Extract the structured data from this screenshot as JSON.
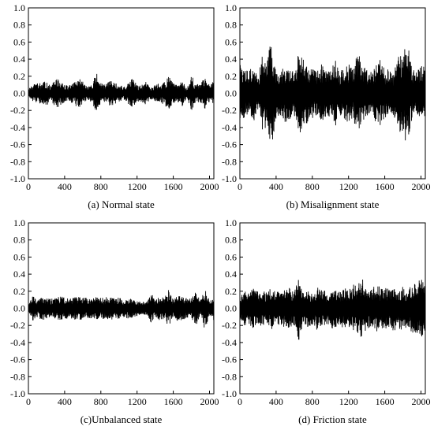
{
  "chart_data": [
    {
      "type": "line",
      "caption": "(a) Normal state",
      "xlim": [
        0,
        2048
      ],
      "ylim": [
        -1.0,
        1.0
      ],
      "x_ticks": [
        0,
        400,
        800,
        1200,
        1600,
        2000
      ],
      "y_ticks": [
        "1.0",
        "0.8",
        "0.6",
        "0.4",
        "0.2",
        "0.0",
        "-0.2",
        "-0.4",
        "-0.6",
        "-0.8",
        "-1.0"
      ],
      "series": [
        {
          "x": [
            0,
            50,
            100,
            150,
            200,
            250,
            300,
            350,
            400,
            450,
            500,
            550,
            600,
            650,
            700,
            750,
            800,
            850,
            900,
            950,
            1000,
            1050,
            1100,
            1150,
            1200,
            1250,
            1300,
            1350,
            1400,
            1450,
            1500,
            1550,
            1600,
            1650,
            1700,
            1750,
            1800,
            1850,
            1900,
            1950,
            2000,
            2048
          ],
          "values": [
            0.05,
            -0.1,
            0.12,
            -0.12,
            0.15,
            -0.08,
            0.18,
            -0.15,
            0.1,
            -0.1,
            0.12,
            -0.18,
            0.14,
            -0.08,
            0.1,
            -0.25,
            0.12,
            -0.1,
            0.15,
            -0.14,
            0.1,
            -0.08,
            0.12,
            -0.18,
            0.1,
            -0.1,
            0.14,
            -0.08,
            0.1,
            -0.12,
            0.13,
            -0.2,
            0.12,
            -0.1,
            0.15,
            -0.05,
            0.22,
            -0.1,
            0.12,
            -0.18,
            0.1,
            -0.15
          ]
        }
      ]
    },
    {
      "type": "line",
      "caption": "(b) Misalignment state",
      "xlim": [
        0,
        2048
      ],
      "ylim": [
        -1.0,
        1.0
      ],
      "x_ticks": [
        0,
        400,
        800,
        1200,
        1600,
        2000
      ],
      "y_ticks": [
        "1.0",
        "0.8",
        "0.6",
        "0.4",
        "0.2",
        "0.0",
        "-0.2",
        "-0.4",
        "-0.6",
        "-0.8",
        "-1.0"
      ],
      "series": [
        {
          "x": [
            0,
            50,
            100,
            150,
            200,
            250,
            300,
            350,
            400,
            450,
            500,
            550,
            600,
            650,
            700,
            750,
            800,
            850,
            900,
            950,
            1000,
            1050,
            1100,
            1150,
            1200,
            1250,
            1300,
            1350,
            1400,
            1450,
            1500,
            1550,
            1600,
            1650,
            1700,
            1750,
            1800,
            1850,
            1900,
            1950,
            2000,
            2048
          ],
          "values": [
            0.35,
            -0.3,
            0.25,
            -0.35,
            0.2,
            -0.45,
            0.42,
            -0.62,
            0.3,
            -0.28,
            0.35,
            -0.3,
            0.25,
            -0.52,
            0.4,
            -0.35,
            0.3,
            -0.25,
            0.35,
            -0.3,
            0.28,
            -0.4,
            0.25,
            -0.3,
            0.35,
            -0.28,
            0.5,
            -0.35,
            0.3,
            -0.25,
            0.35,
            -0.4,
            0.28,
            -0.3,
            0.25,
            -0.45,
            0.45,
            -0.64,
            0.3,
            -0.28,
            0.35,
            -0.3
          ]
        }
      ]
    },
    {
      "type": "line",
      "caption": "(c)Unbalanced state",
      "xlim": [
        0,
        2048
      ],
      "ylim": [
        -1.0,
        1.0
      ],
      "x_ticks": [
        0,
        400,
        800,
        1200,
        1600,
        2000
      ],
      "y_ticks": [
        "1.0",
        "0.8",
        "0.6",
        "0.4",
        "0.2",
        "0.0",
        "-0.2",
        "-0.4",
        "-0.6",
        "-0.8",
        "-1.0"
      ],
      "series": [
        {
          "x": [
            0,
            50,
            100,
            150,
            200,
            250,
            300,
            350,
            400,
            450,
            500,
            550,
            600,
            650,
            700,
            750,
            800,
            850,
            900,
            950,
            1000,
            1050,
            1100,
            1150,
            1200,
            1250,
            1300,
            1350,
            1400,
            1450,
            1500,
            1550,
            1600,
            1650,
            1700,
            1750,
            1800,
            1850,
            1900,
            1950,
            2000,
            2048
          ],
          "values": [
            0.05,
            -0.15,
            0.1,
            -0.15,
            0.12,
            -0.12,
            0.12,
            -0.14,
            0.13,
            -0.12,
            0.14,
            -0.13,
            0.15,
            -0.12,
            0.14,
            -0.14,
            0.12,
            -0.13,
            0.14,
            -0.12,
            0.13,
            -0.1,
            0.12,
            -0.11,
            0.1,
            -0.08,
            0.08,
            -0.2,
            0.1,
            -0.15,
            0.12,
            -0.22,
            0.1,
            -0.15,
            0.14,
            -0.12,
            0.12,
            -0.2,
            0.1,
            -0.25,
            0.08,
            -0.15
          ]
        }
      ]
    },
    {
      "type": "line",
      "caption": "(d) Friction state",
      "xlim": [
        0,
        2048
      ],
      "ylim": [
        -1.0,
        1.0
      ],
      "x_ticks": [
        0,
        400,
        800,
        1200,
        1600,
        2000
      ],
      "y_ticks": [
        "1.0",
        "0.8",
        "0.6",
        "0.4",
        "0.2",
        "0.0",
        "-0.2",
        "-0.4",
        "-0.6",
        "-0.8",
        "-1.0"
      ],
      "series": [
        {
          "x": [
            0,
            50,
            100,
            150,
            200,
            250,
            300,
            350,
            400,
            450,
            500,
            550,
            600,
            650,
            700,
            750,
            800,
            850,
            900,
            950,
            1000,
            1050,
            1100,
            1150,
            1200,
            1250,
            1300,
            1350,
            1400,
            1450,
            1500,
            1550,
            1600,
            1650,
            1700,
            1750,
            1800,
            1850,
            1900,
            1950,
            2000,
            2048
          ],
          "values": [
            0.15,
            -0.2,
            0.18,
            -0.25,
            0.2,
            -0.22,
            0.18,
            -0.25,
            0.2,
            -0.22,
            0.22,
            -0.25,
            0.2,
            -0.38,
            0.18,
            -0.22,
            0.2,
            -0.25,
            0.22,
            -0.2,
            0.25,
            -0.22,
            0.2,
            -0.25,
            0.22,
            -0.28,
            0.3,
            -0.35,
            0.25,
            -0.22,
            0.28,
            -0.25,
            0.25,
            -0.22,
            0.28,
            -0.25,
            0.25,
            -0.22,
            0.28,
            -0.3,
            0.35,
            -0.25
          ]
        }
      ]
    }
  ]
}
